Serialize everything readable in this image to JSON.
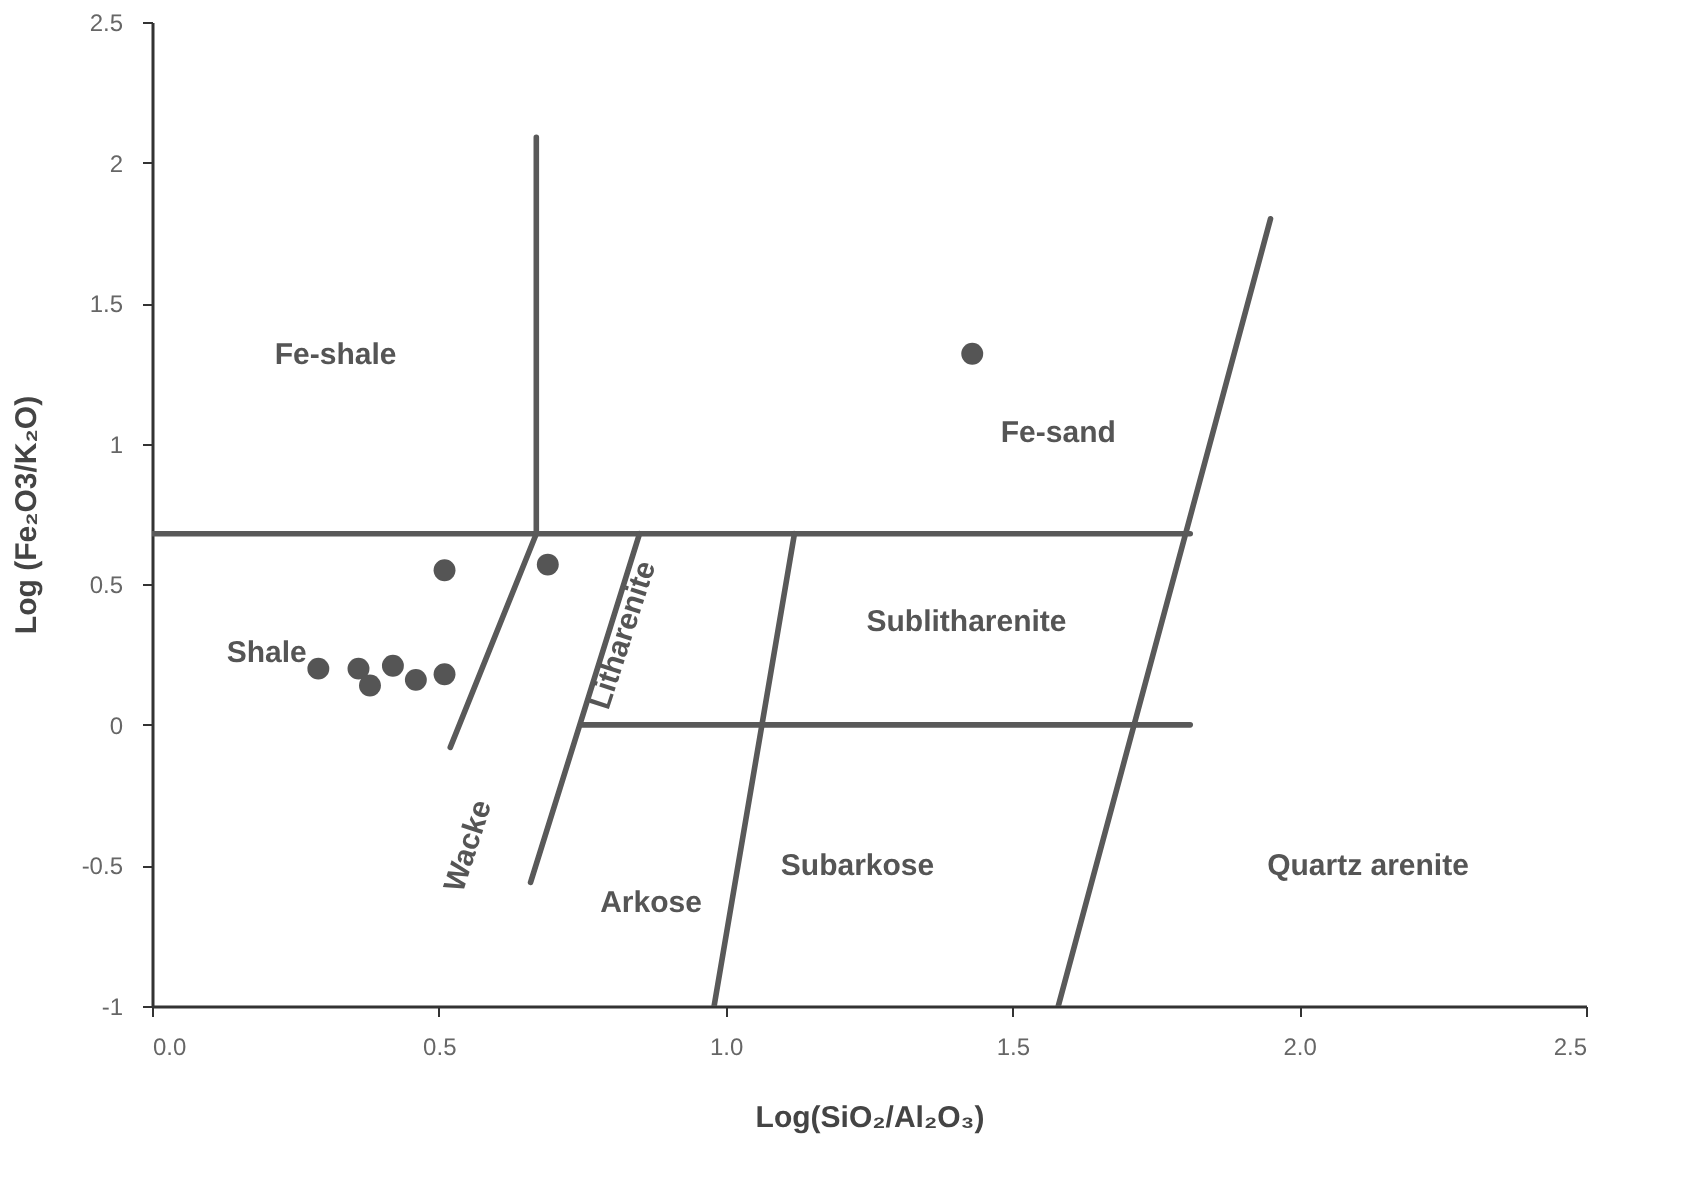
{
  "chart_data": {
    "type": "scatter",
    "xlabel": "Log(SiO₂/Al₂O₃)",
    "ylabel": "Log (Fe₂O3/K₂O)",
    "xlim": [
      0,
      2.5
    ],
    "ylim": [
      -1,
      2.5
    ],
    "xticks": [
      {
        "value": 0,
        "label": "0.0"
      },
      {
        "value": 0.5,
        "label": "0.5"
      },
      {
        "value": 1,
        "label": "1.0"
      },
      {
        "value": 1.5,
        "label": "1.5"
      },
      {
        "value": 2,
        "label": "2.0"
      },
      2.5
    ],
    "yticks": [
      -1,
      -0.5,
      0,
      0.5,
      1,
      1.5,
      2,
      2.5
    ],
    "grid": false,
    "series": [
      {
        "marker": "circle",
        "color": "#555555",
        "x": [
          0.29,
          0.36,
          0.38,
          0.42,
          0.46,
          0.51,
          0.51,
          0.69,
          1.43
        ],
        "values": [
          0.2,
          0.2,
          0.14,
          0.21,
          0.16,
          0.18,
          0.55,
          0.57,
          1.32
        ]
      },
      {
        "type": "line",
        "color": "#595959",
        "x": [
          0,
          1.81
        ],
        "values": [
          0.68,
          0.68
        ]
      },
      {
        "type": "line",
        "color": "#595959",
        "x": [
          0.67,
          0.67,
          0.52
        ],
        "values": [
          2.09,
          0.68,
          -0.08
        ]
      },
      {
        "type": "line",
        "color": "#595959",
        "x": [
          0.85,
          0.66
        ],
        "values": [
          0.68,
          -0.56
        ]
      },
      {
        "type": "line",
        "color": "#595959",
        "x": [
          1.12,
          0.98
        ],
        "values": [
          0.68,
          -1
        ]
      },
      {
        "type": "line",
        "color": "#595959",
        "x": [
          0.75,
          1.81
        ],
        "values": [
          0,
          0
        ]
      },
      {
        "type": "line",
        "color": "#595959",
        "x": [
          1.95,
          1.58
        ],
        "values": [
          1.8,
          -1
        ]
      }
    ],
    "annotations": [
      "Fe-shale",
      "Fe-sand",
      "Shale",
      "Sublitharenite",
      "Litharenite",
      "Wacke",
      "Subarkose",
      "Arkose",
      "Quartz arenite"
    ]
  }
}
